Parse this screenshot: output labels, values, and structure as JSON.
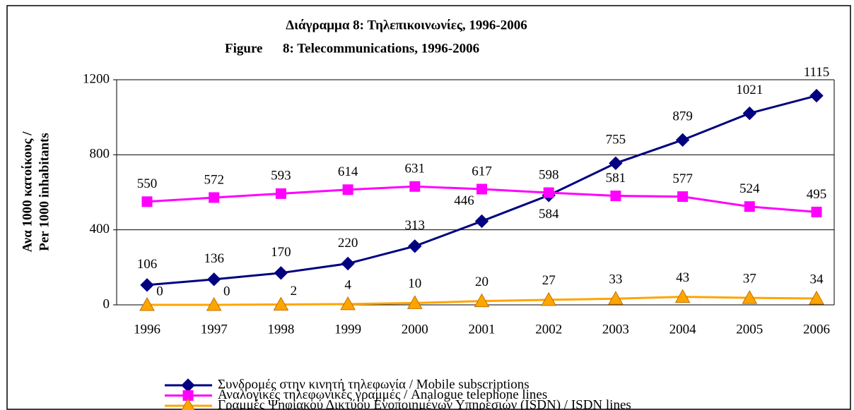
{
  "chart_data": {
    "type": "line",
    "title": "Διάγραμμα 8: Τηλεπικοινωνίες, 1996-2006",
    "subtitle": "Figure      8: Telecommunications, 1996-2006",
    "ylabel": [
      "Ανα 1000 κατοίκους /",
      "Per 1000 inhabitants"
    ],
    "categories": [
      "1996",
      "1997",
      "1998",
      "1999",
      "2000",
      "2001",
      "2002",
      "2003",
      "2004",
      "2005",
      "2006"
    ],
    "series": [
      {
        "name": "Συνδρομές στην κινητή τηλεφωνία / Mobile subscriptions",
        "color": "#000080",
        "marker": "diamond",
        "values": [
          106,
          136,
          170,
          220,
          313,
          446,
          584,
          755,
          879,
          1021,
          1115
        ]
      },
      {
        "name": "Αναλογικές τηλεφωνικές γραμμές / Analogue telephone lines",
        "color": "#ff00ff",
        "marker": "square",
        "values": [
          550,
          572,
          593,
          614,
          631,
          617,
          598,
          581,
          577,
          524,
          495
        ]
      },
      {
        "name": "Γραμμές Ψηφιακού Δικτύου Ενοποιημένων Υπηρεσιών (ISDN) / ISDN lines",
        "color": "#ffa500",
        "marker": "triangle",
        "values": [
          0,
          0,
          2,
          4,
          10,
          20,
          27,
          33,
          43,
          37,
          34
        ]
      }
    ],
    "ylim": [
      0,
      1200
    ],
    "yticks": [
      0,
      400,
      800,
      1200
    ],
    "grid": true,
    "legend": "bottom"
  }
}
